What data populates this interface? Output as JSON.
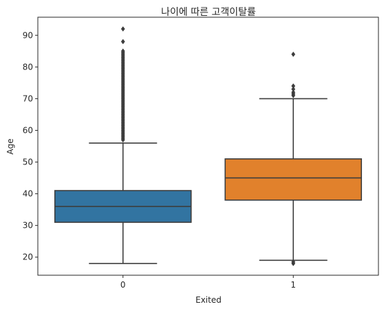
{
  "chart_data": {
    "type": "box",
    "title": "나이에 따른 고객이탈률",
    "xlabel": "Exited",
    "ylabel": "Age",
    "categories": [
      "0",
      "1"
    ],
    "ylim": [
      14.3,
      95.7
    ],
    "yticks": [
      20,
      30,
      40,
      50,
      60,
      70,
      80,
      90
    ],
    "grid": false,
    "boxes": [
      {
        "category": "0",
        "color": "#3274a1",
        "whisker_low": 18,
        "q1": 31,
        "median": 36,
        "q3": 41,
        "whisker_high": 56,
        "outliers": [
          57,
          57.5,
          58,
          58.5,
          59,
          59.5,
          60,
          60.5,
          61,
          61.5,
          62,
          62.5,
          63,
          63.5,
          64,
          64.5,
          65,
          65.5,
          66,
          66.5,
          67,
          67.5,
          68,
          68.5,
          69,
          69.5,
          70,
          70.5,
          71,
          71.5,
          72,
          72.5,
          73,
          73.5,
          74,
          74.5,
          75,
          75.5,
          76,
          76.5,
          77,
          77.5,
          78,
          78.5,
          79,
          79.5,
          80,
          80.5,
          81,
          81.5,
          82,
          82.5,
          83,
          83.5,
          84,
          84.5,
          85,
          88,
          92
        ]
      },
      {
        "category": "1",
        "color": "#e1812c",
        "whisker_low": 19,
        "q1": 38,
        "median": 45,
        "q3": 51,
        "whisker_high": 70,
        "outliers": [
          18,
          18.5,
          71,
          71.5,
          72,
          73,
          74,
          84
        ]
      }
    ]
  }
}
